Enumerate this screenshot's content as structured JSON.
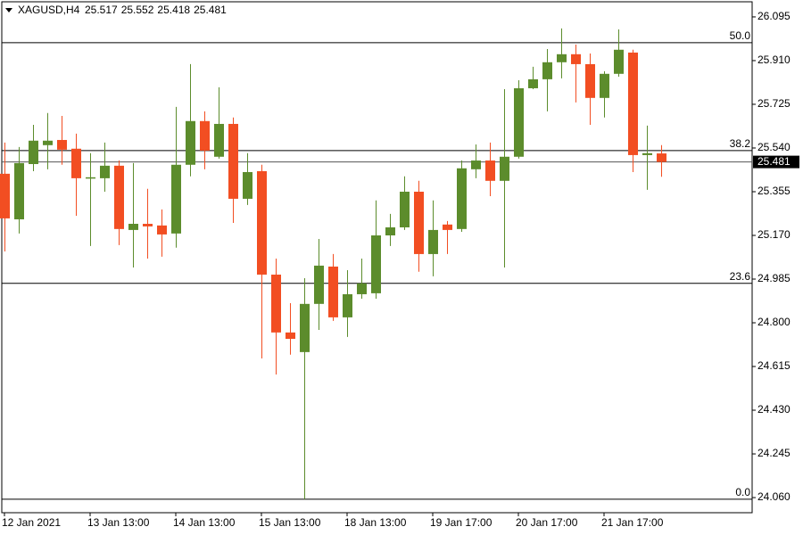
{
  "chart_data": {
    "type": "candlestick",
    "symbol": "XAGUSD,H4",
    "header_ohlc": [
      25.517,
      25.552,
      25.418,
      25.481
    ],
    "categories": [
      "12 Jan 2021",
      null,
      null,
      null,
      null,
      null,
      "13 Jan 13:00",
      null,
      null,
      null,
      null,
      null,
      "14 Jan 13:00",
      null,
      null,
      null,
      null,
      null,
      "15 Jan 13:00",
      null,
      null,
      null,
      null,
      null,
      "18 Jan 13:00",
      null,
      null,
      null,
      null,
      null,
      "19 Jan 17:00",
      null,
      null,
      null,
      null,
      null,
      "20 Jan 17:00",
      null,
      null,
      null,
      null,
      null,
      "21 Jan 17:00",
      null,
      null,
      null,
      null
    ],
    "open": [
      25.431,
      25.238,
      25.472,
      25.552,
      25.574,
      25.537,
      25.412,
      25.412,
      25.465,
      25.193,
      25.219,
      25.212,
      25.178,
      25.469,
      25.654,
      25.503,
      25.642,
      25.325,
      25.442,
      25.004,
      24.759,
      24.676,
      24.88,
      25.038,
      24.823,
      24.921,
      24.925,
      25.17,
      25.204,
      25.355,
      25.091,
      25.216,
      25.197,
      25.45,
      25.487,
      25.401,
      25.503,
      25.793,
      25.831,
      25.903,
      25.937,
      25.895,
      25.752,
      25.854,
      25.944,
      25.51,
      25.517
    ],
    "high": [
      25.563,
      25.544,
      25.638,
      25.688,
      25.676,
      25.601,
      25.518,
      25.563,
      25.487,
      25.476,
      25.367,
      25.28,
      25.714,
      25.895,
      25.695,
      25.797,
      25.669,
      25.518,
      25.469,
      25.072,
      24.883,
      24.989,
      25.155,
      25.091,
      25.023,
      25.072,
      25.318,
      25.261,
      25.42,
      25.401,
      25.318,
      25.231,
      25.487,
      25.555,
      25.563,
      25.789,
      25.827,
      25.884,
      25.959,
      26.046,
      25.978,
      25.94,
      25.865,
      26.042,
      25.956,
      25.635,
      25.552
    ],
    "low": [
      25.102,
      25.178,
      25.442,
      25.45,
      25.469,
      25.253,
      25.125,
      25.355,
      25.129,
      25.034,
      25.072,
      25.08,
      25.118,
      25.42,
      25.45,
      25.495,
      25.223,
      25.299,
      24.649,
      24.581,
      24.665,
      24.053,
      24.77,
      24.808,
      24.74,
      24.902,
      24.902,
      25.125,
      25.193,
      25.016,
      24.997,
      25.091,
      25.185,
      25.412,
      25.336,
      25.034,
      25.495,
      25.789,
      25.695,
      25.835,
      25.733,
      25.638,
      25.669,
      25.842,
      25.438,
      25.363,
      25.418
    ],
    "close": [
      25.242,
      25.476,
      25.571,
      25.571,
      25.533,
      25.412,
      25.416,
      25.465,
      25.197,
      25.219,
      25.208,
      25.174,
      25.469,
      25.654,
      25.529,
      25.642,
      25.325,
      25.438,
      25.004,
      24.759,
      24.732,
      24.88,
      25.042,
      24.823,
      24.921,
      24.967,
      25.17,
      25.204,
      25.355,
      25.091,
      25.193,
      25.193,
      25.454,
      25.487,
      25.401,
      25.503,
      25.793,
      25.831,
      25.903,
      25.937,
      25.895,
      25.752,
      25.854,
      25.956,
      25.51,
      25.518,
      25.481
    ],
    "up_color": "#5c8c2c",
    "down_color": "#f24e22",
    "ylim": [
      23.996,
      26.159
    ],
    "yticks": [
      26.095,
      {
        "value": 25.91,
        "label": "25.910"
      },
      25.725,
      {
        "value": 25.54,
        "label": "25.540"
      },
      25.355,
      {
        "value": 25.17,
        "label": "25.170"
      },
      24.985,
      {
        "value": 24.8,
        "label": "24.800"
      },
      24.615,
      {
        "value": 24.43,
        "label": "24.430"
      },
      24.245,
      {
        "value": 24.06,
        "label": "24.060"
      }
    ],
    "levels": [
      {
        "label": "50.0",
        "price": 25.986
      },
      {
        "label": "38.2",
        "price": 25.529
      },
      {
        "label": "23.6",
        "price": 24.967
      },
      {
        "label": "0.0",
        "price": 24.053
      }
    ],
    "last_price": 25.481
  }
}
